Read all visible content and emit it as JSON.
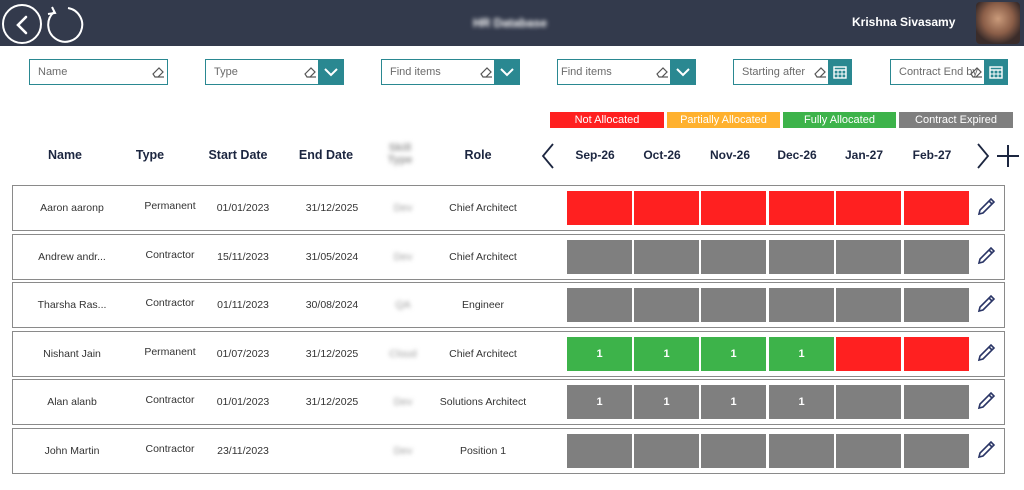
{
  "header": {
    "title": "HR Database",
    "user_name": "Krishna Sivasamy"
  },
  "filters": {
    "name": {
      "placeholder": "Name"
    },
    "type": {
      "placeholder": "Type"
    },
    "find1": {
      "placeholder": "Find items"
    },
    "find2": {
      "placeholder": "Find items"
    },
    "start": {
      "placeholder": "Starting after"
    },
    "end": {
      "placeholder": "Contract End by"
    }
  },
  "legend": [
    {
      "label": "Not Allocated",
      "color": "#ff2020"
    },
    {
      "label": "Partially Allocated",
      "color": "#ffb12e"
    },
    {
      "label": "Fully Allocated",
      "color": "#3db34a"
    },
    {
      "label": "Contract Expired",
      "color": "#7f7f7f"
    }
  ],
  "columns": {
    "name": "Name",
    "type": "Type",
    "start": "Start Date",
    "end": "End Date",
    "skill": "Skill Type",
    "role": "Role"
  },
  "months": [
    "Sep-26",
    "Oct-26",
    "Nov-26",
    "Dec-26",
    "Jan-27",
    "Feb-27"
  ],
  "colors": {
    "red": "#ff2020",
    "green": "#3db34a",
    "grey": "#7f7f7f",
    "orange": "#ffb12e"
  },
  "rows": [
    {
      "name": "Aaron aaronp",
      "type": "Permanent",
      "start": "01/01/2023",
      "end": "31/12/2025",
      "skill": "Dev",
      "role": "Chief Architect",
      "alloc": [
        {
          "s": "red",
          "v": ""
        },
        {
          "s": "red",
          "v": ""
        },
        {
          "s": "red",
          "v": ""
        },
        {
          "s": "red",
          "v": ""
        },
        {
          "s": "red",
          "v": ""
        },
        {
          "s": "red",
          "v": ""
        }
      ]
    },
    {
      "name": "Andrew andr...",
      "type": "Contractor",
      "start": "15/11/2023",
      "end": "31/05/2024",
      "skill": "Dev",
      "role": "Chief Architect",
      "alloc": [
        {
          "s": "grey",
          "v": ""
        },
        {
          "s": "grey",
          "v": ""
        },
        {
          "s": "grey",
          "v": ""
        },
        {
          "s": "grey",
          "v": ""
        },
        {
          "s": "grey",
          "v": ""
        },
        {
          "s": "grey",
          "v": ""
        }
      ]
    },
    {
      "name": "Tharsha Ras...",
      "type": "Contractor",
      "start": "01/11/2023",
      "end": "30/08/2024",
      "skill": "QA",
      "role": "Engineer",
      "alloc": [
        {
          "s": "grey",
          "v": ""
        },
        {
          "s": "grey",
          "v": ""
        },
        {
          "s": "grey",
          "v": ""
        },
        {
          "s": "grey",
          "v": ""
        },
        {
          "s": "grey",
          "v": ""
        },
        {
          "s": "grey",
          "v": ""
        }
      ]
    },
    {
      "name": "Nishant Jain",
      "type": "Permanent",
      "start": "01/07/2023",
      "end": "31/12/2025",
      "skill": "Cloud",
      "role": "Chief Architect",
      "alloc": [
        {
          "s": "green",
          "v": "1"
        },
        {
          "s": "green",
          "v": "1"
        },
        {
          "s": "green",
          "v": "1"
        },
        {
          "s": "green",
          "v": "1"
        },
        {
          "s": "red",
          "v": ""
        },
        {
          "s": "red",
          "v": ""
        }
      ]
    },
    {
      "name": "Alan alanb",
      "type": "Contractor",
      "start": "01/01/2023",
      "end": "31/12/2025",
      "skill": "Dev",
      "role": "Solutions Architect",
      "alloc": [
        {
          "s": "grey",
          "v": "1"
        },
        {
          "s": "grey",
          "v": "1"
        },
        {
          "s": "grey",
          "v": "1"
        },
        {
          "s": "grey",
          "v": "1"
        },
        {
          "s": "grey",
          "v": ""
        },
        {
          "s": "grey",
          "v": ""
        }
      ]
    },
    {
      "name": "John Martin",
      "type": "Contractor",
      "start": "23/11/2023",
      "end": "",
      "skill": "Dev",
      "role": "Position 1",
      "alloc": [
        {
          "s": "grey",
          "v": ""
        },
        {
          "s": "grey",
          "v": ""
        },
        {
          "s": "grey",
          "v": ""
        },
        {
          "s": "grey",
          "v": ""
        },
        {
          "s": "grey",
          "v": ""
        },
        {
          "s": "grey",
          "v": ""
        }
      ]
    }
  ]
}
